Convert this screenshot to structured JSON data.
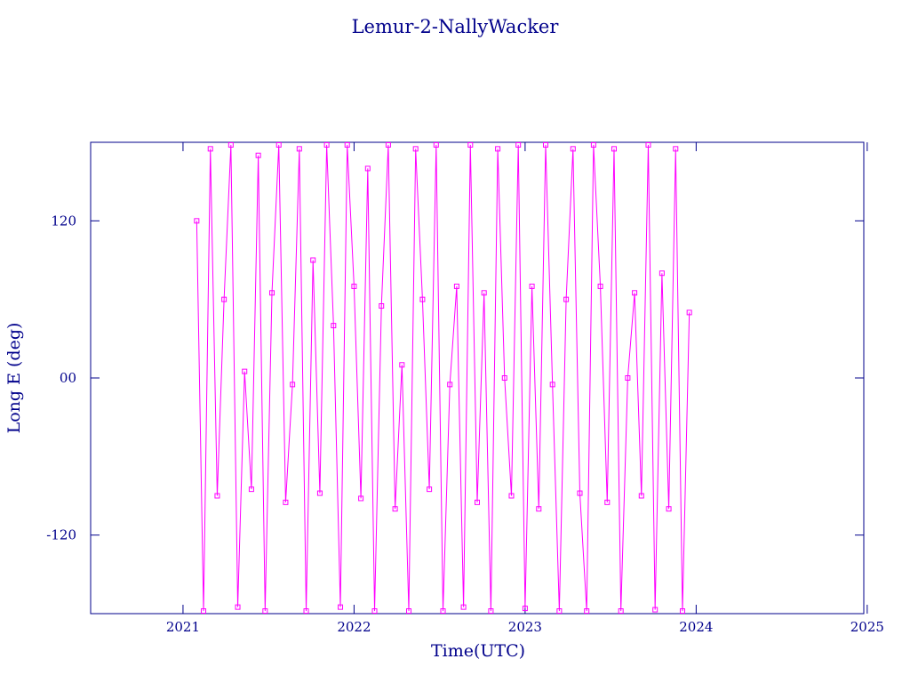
{
  "chart_data": {
    "type": "line",
    "title": "Lemur-2-NallyWacker",
    "xlabel": "Time(UTC)",
    "ylabel": "Long E (deg)",
    "xlim": [
      2020.46,
      2024.98
    ],
    "xticks": [
      2021,
      2022,
      2023,
      2024,
      2025
    ],
    "ylim": [
      -180,
      180
    ],
    "yticks": [
      -120,
      {
        "value": 0,
        "label": "00"
      },
      120
    ],
    "series": [
      {
        "color": "#ff00ff",
        "x": [
          2021.08,
          2021.12,
          2021.16,
          2021.2,
          2021.24,
          2021.28,
          2021.32,
          2021.36,
          2021.4,
          2021.44,
          2021.48,
          2021.52,
          2021.56,
          2021.6,
          2021.64,
          2021.68,
          2021.72,
          2021.76,
          2021.8,
          2021.84,
          2021.88,
          2021.92,
          2021.96,
          2022.0,
          2022.04,
          2022.08,
          2022.12,
          2022.16,
          2022.2,
          2022.24,
          2022.28,
          2022.32,
          2022.36,
          2022.4,
          2022.44,
          2022.48,
          2022.52,
          2022.56,
          2022.6,
          2022.64,
          2022.68,
          2022.72,
          2022.76,
          2022.8,
          2022.84,
          2022.88,
          2022.92,
          2022.96,
          2023.0,
          2023.04,
          2023.08,
          2023.12,
          2023.16,
          2023.2,
          2023.24,
          2023.28,
          2023.32,
          2023.36,
          2023.4,
          2023.44,
          2023.48,
          2023.52,
          2023.56,
          2023.6,
          2023.64,
          2023.68,
          2023.72,
          2023.76,
          2023.8,
          2023.84,
          2023.88,
          2023.92,
          2023.96
        ],
        "values": [
          120,
          -178,
          175,
          -90,
          60,
          178,
          -175,
          5,
          -85,
          170,
          -178,
          65,
          178,
          -95,
          -5,
          175,
          -178,
          90,
          -88,
          178,
          40,
          -175,
          178,
          70,
          -92,
          160,
          -178,
          55,
          178,
          -100,
          10,
          -178,
          175,
          60,
          -85,
          178,
          -178,
          -5,
          70,
          -175,
          178,
          -95,
          65,
          -178,
          175,
          0,
          -90,
          178,
          -176,
          70,
          -100,
          178,
          -5,
          -178,
          60,
          175,
          -88,
          -178,
          178,
          70,
          -95,
          175,
          -178,
          0,
          65,
          -90,
          178,
          -177,
          80,
          -100,
          175,
          -178,
          50
        ]
      }
    ]
  }
}
